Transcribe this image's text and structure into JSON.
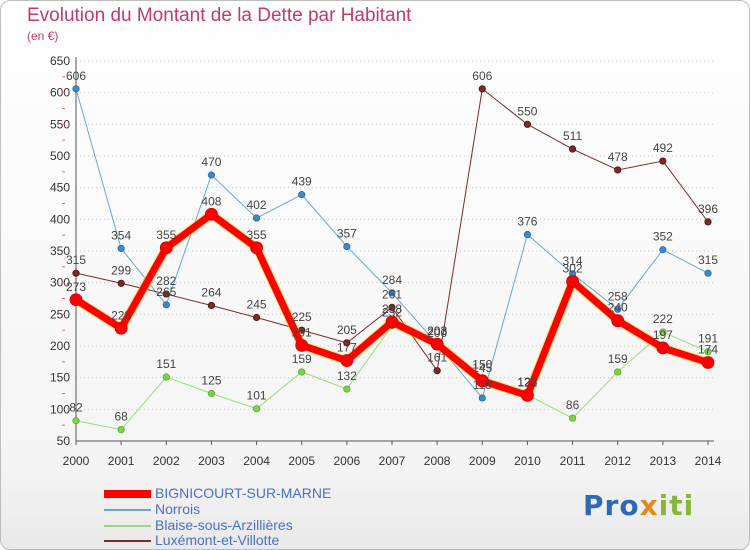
{
  "header": {
    "title": "Evolution du Montant de la Dette par Habitant",
    "subtitle": "(en €)"
  },
  "logo": {
    "text": "Proxiti",
    "colors": [
      "#2c6ab3",
      "#e48a1d",
      "#86b73a"
    ]
  },
  "chart_data": {
    "type": "line",
    "title": "Evolution du Montant de la Dette par Habitant",
    "ylabel": "(en €)",
    "xlabel": "",
    "x": [
      "2000",
      "2001",
      "2002",
      "2003",
      "2004",
      "2005",
      "2006",
      "2007",
      "2008",
      "2009",
      "2010",
      "2011",
      "2012",
      "2013",
      "2014"
    ],
    "y_ticks": [
      50,
      100,
      150,
      200,
      250,
      300,
      350,
      400,
      450,
      500,
      550,
      600,
      650
    ],
    "ylim": [
      50,
      650
    ],
    "grid": "horizontal dotted",
    "legend_position": "bottom",
    "series": [
      {
        "name": "BIGNICOURT-SUR-MARNE",
        "color": "#ff0000",
        "values": [
          273,
          228,
          355,
          408,
          355,
          201,
          177,
          238,
          203,
          145,
          122,
          302,
          240,
          197,
          174
        ],
        "labels": [
          "273",
          "228",
          "355",
          "408",
          "355",
          "201",
          "177",
          "238",
          "203",
          "145",
          "122",
          "302",
          "240",
          "197",
          "174"
        ]
      },
      {
        "name": "Norrois",
        "color": "#6aa5d8",
        "values": [
          606,
          354,
          265,
          470,
          402,
          439,
          357,
          284,
          203,
          118,
          376,
          314,
          258,
          352,
          315
        ],
        "labels": [
          "606",
          "354",
          "265",
          "470",
          "402",
          "439",
          "357",
          "284",
          "203",
          "118",
          "376",
          "314",
          "258",
          "352",
          "315"
        ]
      },
      {
        "name": "Blaise-sous-Arzillières",
        "color": "#99dd77",
        "values": [
          82,
          68,
          151,
          125,
          101,
          159,
          132,
          232,
          200,
          150,
          123,
          86,
          159,
          222,
          191
        ],
        "labels": [
          "82",
          "68",
          "151",
          "125",
          "101",
          "159",
          "132",
          "232",
          "200",
          "150",
          "123",
          "86",
          "159",
          "222",
          "191"
        ]
      },
      {
        "name": "Luxémont-et-Villotte",
        "color": "#7a2a2a",
        "values": [
          315,
          299,
          282,
          264,
          245,
          225,
          205,
          261,
          161,
          606,
          550,
          511,
          478,
          492,
          396
        ],
        "labels": [
          "315",
          "299",
          "282",
          "264",
          "245",
          "225",
          "205",
          "261",
          "161",
          "606",
          "550",
          "511",
          "478",
          "492",
          "396"
        ]
      }
    ]
  }
}
